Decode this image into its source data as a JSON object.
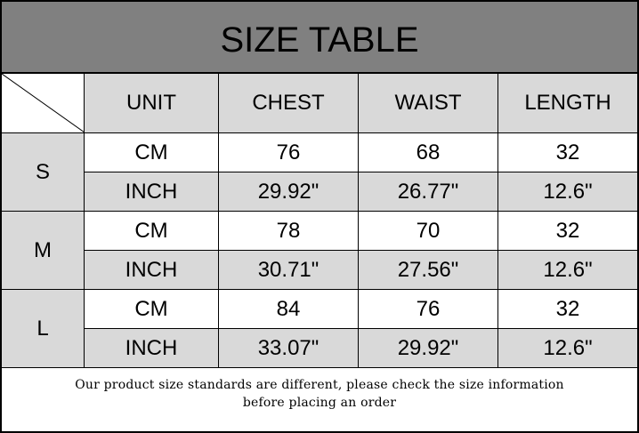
{
  "title": "SIZE TABLE",
  "headers": [
    "UNIT",
    "CHEST",
    "WAIST",
    "LENGTH"
  ],
  "rows": [
    {
      "size": "S",
      "cm": [
        "CM",
        "76",
        "68",
        "32"
      ],
      "inch": [
        "INCH",
        "29.92\"",
        "26.77\"",
        "12.6\""
      ]
    },
    {
      "size": "M",
      "cm": [
        "CM",
        "78",
        "70",
        "32"
      ],
      "inch": [
        "INCH",
        "30.71\"",
        "27.56\"",
        "12.6\""
      ]
    },
    {
      "size": "L",
      "cm": [
        "CM",
        "84",
        "76",
        "32"
      ],
      "inch": [
        "INCH",
        "33.07\"",
        "29.92\"",
        "12.6\""
      ]
    }
  ],
  "footer": {
    "line1": "Our product size standards are different, please check the size information",
    "line2": "before placing an order"
  },
  "colors": {
    "title_bg": "#808080",
    "cell_gray": "#d9d9d9"
  }
}
